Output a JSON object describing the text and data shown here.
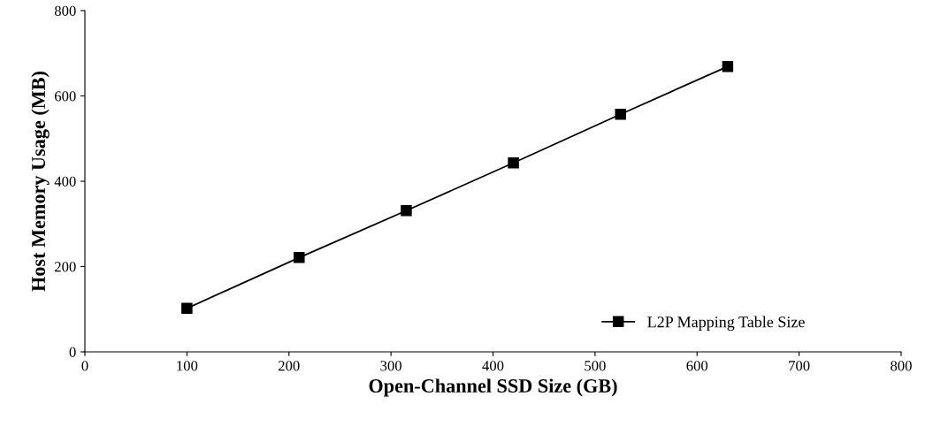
{
  "chart_data": {
    "type": "line",
    "xlabel": "Open-Channel SSD Size (GB)",
    "ylabel": "Host Memory Usage (MB)",
    "x": [
      100,
      210,
      315,
      420,
      525,
      630
    ],
    "series": [
      {
        "name": "L2P Mapping Table Size",
        "color": "#000000",
        "values": [
          102,
          221,
          331,
          443,
          557,
          669
        ]
      }
    ],
    "xlim": [
      0,
      800
    ],
    "xticks": [
      0,
      100,
      200,
      300,
      400,
      500,
      600,
      700,
      800
    ],
    "ylim": [
      0,
      800
    ],
    "yticks": [
      0,
      200,
      400,
      600,
      800
    ],
    "marker": "square",
    "line_style": "solid",
    "grid": false,
    "legend": "bottom right"
  }
}
